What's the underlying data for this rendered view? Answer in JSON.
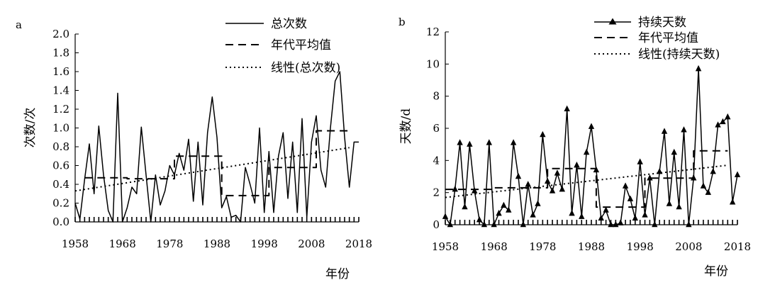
{
  "chart_data": [
    {
      "panel_label": "a",
      "type": "line",
      "xlabel": "年份",
      "ylabel": "次数/次",
      "xlim": [
        1958,
        2018
      ],
      "ylim": [
        0,
        2.0
      ],
      "xticks": [
        "1958",
        "1968",
        "1978",
        "1988",
        "1998",
        "2008",
        "2018"
      ],
      "yticks": [
        "0.0",
        "0.2",
        "0.4",
        "0.6",
        "0.8",
        "1.0",
        "1.2",
        "1.4",
        "1.6",
        "1.8",
        "2.0"
      ],
      "legend_position": "top-right",
      "series": [
        {
          "name": "总次数",
          "style": "solid",
          "x": [
            1958,
            1959,
            1960,
            1961,
            1962,
            1963,
            1964,
            1965,
            1966,
            1967,
            1968,
            1969,
            1970,
            1971,
            1972,
            1973,
            1974,
            1975,
            1976,
            1977,
            1978,
            1979,
            1980,
            1981,
            1982,
            1983,
            1984,
            1985,
            1986,
            1987,
            1988,
            1989,
            1990,
            1991,
            1992,
            1993,
            1994,
            1995,
            1996,
            1997,
            1998,
            1999,
            2000,
            2001,
            2002,
            2003,
            2004,
            2005,
            2006,
            2007,
            2008,
            2009,
            2010,
            2011,
            2012,
            2013,
            2014,
            2015,
            2016,
            2017,
            2018
          ],
          "values": [
            0.2,
            0.03,
            0.45,
            0.83,
            0.3,
            1.02,
            0.5,
            0.12,
            0,
            1.37,
            0,
            0.15,
            0.37,
            0.3,
            1.01,
            0.5,
            0,
            0.5,
            0.18,
            0.33,
            0.6,
            0.5,
            0.73,
            0.55,
            0.88,
            0.22,
            0.85,
            0.18,
            0.95,
            1.33,
            0.9,
            0.15,
            0.27,
            0.05,
            0.07,
            0,
            0.58,
            0.4,
            0.2,
            1.0,
            0.1,
            0.75,
            0.1,
            0.7,
            0.95,
            0.25,
            0.85,
            0.1,
            1.1,
            0.05,
            0.85,
            1.13,
            0.55,
            0.37,
            1.0,
            1.5,
            1.6,
            0.9,
            0.37,
            0.85,
            0.85
          ]
        },
        {
          "name": "年代平均值",
          "style": "dashed",
          "x": [
            1960,
            1969,
            1969,
            1979,
            1979,
            1989,
            1989,
            1999,
            1999,
            2009,
            2009,
            2016
          ],
          "values": [
            0.47,
            0.47,
            0.46,
            0.46,
            0.7,
            0.7,
            0.28,
            0.28,
            0.58,
            0.58,
            0.97,
            0.97
          ]
        },
        {
          "name": "线性(总次数)",
          "style": "dotted",
          "x": [
            1958,
            2016
          ],
          "values": [
            0.33,
            0.79
          ]
        }
      ]
    },
    {
      "panel_label": "b",
      "type": "line",
      "xlabel": "年份",
      "ylabel": "天数/d",
      "xlim": [
        1958,
        2018
      ],
      "ylim": [
        0,
        12
      ],
      "xticks": [
        "1958",
        "1968",
        "1978",
        "1988",
        "1998",
        "2008",
        "2018"
      ],
      "yticks": [
        "0",
        "2",
        "4",
        "6",
        "8",
        "10",
        "12"
      ],
      "legend_position": "top-right",
      "series": [
        {
          "name": "持续天数",
          "style": "solid-triangle",
          "x": [
            1958,
            1959,
            1960,
            1961,
            1962,
            1963,
            1964,
            1965,
            1966,
            1967,
            1968,
            1969,
            1970,
            1971,
            1972,
            1973,
            1974,
            1975,
            1976,
            1977,
            1978,
            1979,
            1980,
            1981,
            1982,
            1983,
            1984,
            1985,
            1986,
            1987,
            1988,
            1989,
            1990,
            1991,
            1992,
            1993,
            1994,
            1995,
            1996,
            1997,
            1998,
            1999,
            2000,
            2001,
            2002,
            2003,
            2004,
            2005,
            2006,
            2007,
            2008,
            2009,
            2010,
            2011,
            2012,
            2013,
            2014,
            2015,
            2016,
            2017,
            2018
          ],
          "values": [
            0.5,
            0,
            2.2,
            5.1,
            1.1,
            5.0,
            2.1,
            0.3,
            0,
            5.1,
            0,
            0.7,
            1.2,
            0.9,
            5.1,
            3.0,
            0,
            2.5,
            0.6,
            1.3,
            5.6,
            2.7,
            2.1,
            3.2,
            2.2,
            7.2,
            0.7,
            3.7,
            0.5,
            4.5,
            6.1,
            3.4,
            0.4,
            0.9,
            0,
            0,
            0.1,
            2.4,
            1.6,
            0.4,
            3.9,
            0.6,
            2.9,
            0,
            3.3,
            5.8,
            1.3,
            4.5,
            1.1,
            5.9,
            0,
            2.9,
            9.7,
            2.4,
            2.0,
            3.3,
            6.2,
            6.4,
            6.7,
            1.4,
            3.1
          ]
        },
        {
          "name": "年代平均值",
          "style": "dashed",
          "x": [
            1958,
            1968,
            1968,
            1979,
            1979,
            1989,
            1989,
            1999,
            1999,
            2009,
            2009,
            2016
          ],
          "values": [
            2.2,
            2.2,
            2.3,
            2.3,
            3.5,
            3.5,
            1.1,
            1.1,
            2.9,
            2.9,
            4.6,
            4.6
          ]
        },
        {
          "name": "线性(持续天数)",
          "style": "dotted",
          "x": [
            1958,
            2016
          ],
          "values": [
            1.7,
            3.7
          ]
        }
      ]
    }
  ]
}
